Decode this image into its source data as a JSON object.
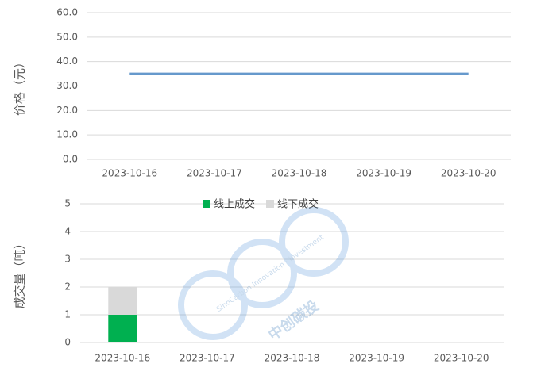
{
  "chart_data": [
    {
      "type": "line",
      "ylabel": "价格（元）",
      "categories": [
        "2023-10-16",
        "2023-10-17",
        "2023-10-18",
        "2023-10-19",
        "2023-10-20"
      ],
      "series": [
        {
          "name": "价格",
          "color": "#6699cc",
          "values": [
            35,
            35,
            35,
            35,
            35
          ]
        }
      ],
      "ylim": [
        0,
        60
      ],
      "yticks": [
        {
          "value": 0,
          "label": "0.0"
        },
        {
          "value": 10,
          "label": "10.0"
        },
        {
          "value": 20,
          "label": "20.0"
        },
        {
          "value": 30,
          "label": "30.0"
        },
        {
          "value": 40,
          "label": "40.0"
        },
        {
          "value": 50,
          "label": "50.0"
        },
        {
          "value": 60,
          "label": "60.0"
        }
      ],
      "grid": true
    },
    {
      "type": "stacked-bar",
      "ylabel": "成交量（吨）",
      "categories": [
        "2023-10-16",
        "2023-10-17",
        "2023-10-18",
        "2023-10-19",
        "2023-10-20"
      ],
      "series": [
        {
          "name": "线上成交",
          "color": "#00b050",
          "values": [
            1,
            0,
            0,
            0,
            0
          ]
        },
        {
          "name": "线下成交",
          "color": "#d9d9d9",
          "values": [
            1,
            0,
            0,
            0,
            0
          ]
        }
      ],
      "ylim": [
        0,
        5
      ],
      "yticks": [
        0,
        1,
        2,
        3,
        4,
        5
      ],
      "grid": true,
      "legend": "top"
    }
  ],
  "watermark": {
    "cn": "中创碳投",
    "en": "SinoCarbon Innovation · Investment"
  }
}
